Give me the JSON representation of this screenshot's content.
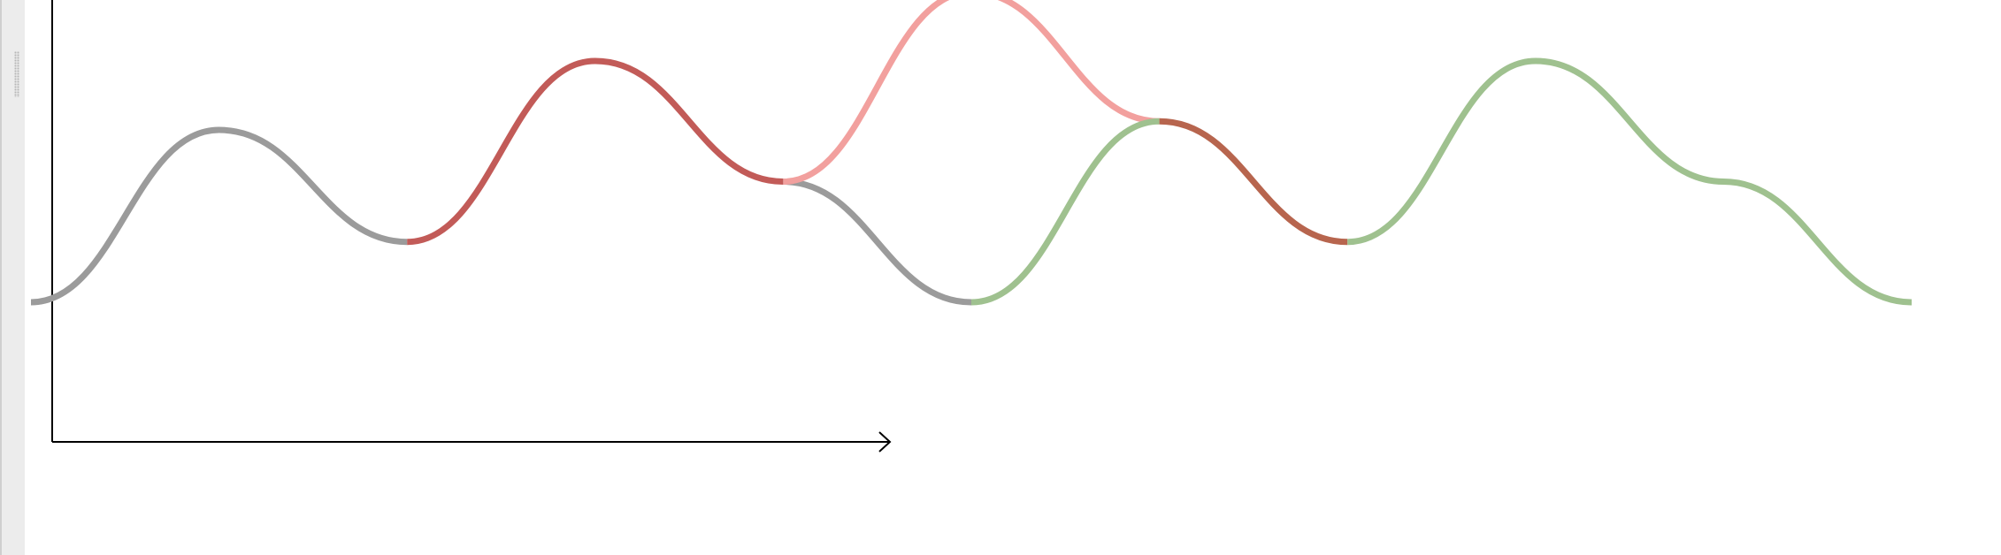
{
  "canvas": {
    "background": "#ffffff",
    "rail_color": "#ececec"
  },
  "axes": {
    "color": "#000000",
    "x_arrow": true,
    "y_arrow": false
  },
  "colors": {
    "gray": "#9b9b9b",
    "red": "#c25b58",
    "pink": "#f2a09e",
    "green": "#9fc18f",
    "brown": "#b7654e"
  },
  "chart_data": {
    "type": "line",
    "title": "",
    "xlabel": "",
    "ylabel": "",
    "grid": false,
    "legend": "none",
    "series": [
      {
        "color_key": "gray",
        "values": [
          [
            0,
            0.0
          ],
          [
            1,
            1.0
          ],
          [
            2,
            0.35
          ]
        ]
      },
      {
        "color_key": "red",
        "values": [
          [
            2,
            0.35
          ],
          [
            3,
            1.4
          ],
          [
            4,
            0.7
          ]
        ]
      },
      {
        "color_key": "gray",
        "values": [
          [
            4,
            0.7
          ],
          [
            5,
            0.0
          ]
        ]
      },
      {
        "color_key": "pink",
        "values": [
          [
            4,
            0.7
          ],
          [
            5,
            1.8
          ],
          [
            6,
            1.05
          ]
        ]
      },
      {
        "color_key": "green",
        "values": [
          [
            5,
            0.0
          ],
          [
            6,
            1.05
          ]
        ]
      },
      {
        "color_key": "brown",
        "values": [
          [
            6,
            1.05
          ],
          [
            7,
            0.35
          ]
        ]
      },
      {
        "color_key": "green",
        "values": [
          [
            7,
            0.35
          ],
          [
            8,
            1.4
          ],
          [
            9,
            0.7
          ],
          [
            10,
            0.0
          ]
        ]
      }
    ]
  }
}
